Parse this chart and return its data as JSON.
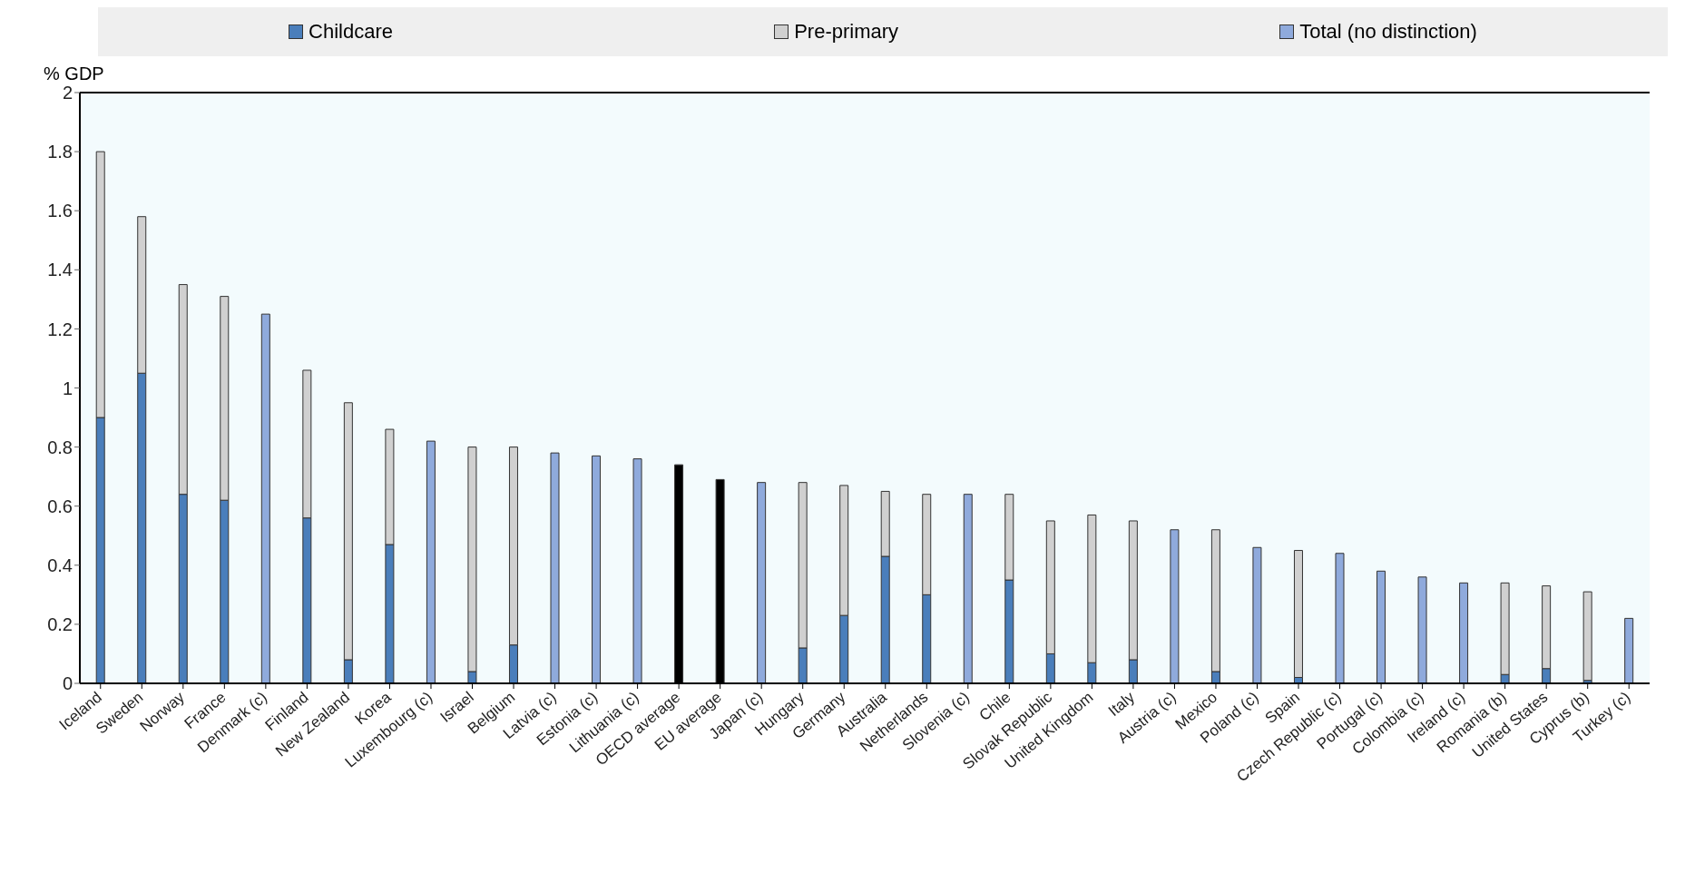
{
  "chart_data": {
    "type": "bar",
    "stacked": true,
    "ylabel": "% GDP",
    "legend": "top",
    "grid": false,
    "categories": [
      "Iceland",
      "Sweden",
      "Norway",
      "France",
      "Denmark (c)",
      "Finland",
      "New Zealand",
      "Korea",
      "Luxembourg (c)",
      "Israel",
      "Belgium",
      "Latvia (c)",
      "Estonia (c)",
      "Lithuania (c)",
      "OECD average",
      "EU average",
      "Japan (c)",
      "Hungary",
      "Germany",
      "Australia",
      "Netherlands",
      "Slovenia (c)",
      "Chile",
      "Slovak Republic",
      "United Kingdom",
      "Italy",
      "Austria (c)",
      "Mexico",
      "Poland (c)",
      "Spain",
      "Czech Republic (c)",
      "Portugal (c)",
      "Colombia (c)",
      "Ireland (c)",
      "Romania (b)",
      "United States",
      "Cyprus (b)",
      "Turkey (c)"
    ],
    "series": [
      {
        "name": "Childcare",
        "color": "#4a7ebb",
        "values": [
          0.9,
          1.05,
          0.64,
          0.62,
          null,
          0.56,
          0.08,
          0.47,
          null,
          0.04,
          0.13,
          null,
          null,
          null,
          null,
          null,
          null,
          0.12,
          0.23,
          0.43,
          0.3,
          null,
          0.35,
          0.1,
          0.07,
          0.08,
          null,
          0.04,
          null,
          0.02,
          null,
          null,
          null,
          null,
          0.03,
          0.05,
          0.01,
          null
        ]
      },
      {
        "name": "Pre-primary",
        "color": "#d0d0d0",
        "values": [
          0.9,
          0.53,
          0.71,
          0.69,
          null,
          0.5,
          0.87,
          0.39,
          null,
          0.76,
          0.67,
          null,
          null,
          null,
          null,
          null,
          null,
          0.56,
          0.44,
          0.22,
          0.34,
          null,
          0.29,
          0.45,
          0.5,
          0.47,
          null,
          0.48,
          null,
          0.43,
          null,
          null,
          null,
          null,
          0.31,
          0.28,
          0.3,
          null
        ]
      },
      {
        "name": "Total (no distinction)",
        "color": "#8faadc",
        "values": [
          null,
          null,
          null,
          null,
          1.25,
          null,
          null,
          null,
          0.82,
          null,
          null,
          0.78,
          0.77,
          0.76,
          null,
          null,
          0.68,
          null,
          null,
          null,
          null,
          0.64,
          null,
          null,
          null,
          null,
          0.52,
          null,
          0.46,
          null,
          0.44,
          0.38,
          0.36,
          0.34,
          null,
          null,
          null,
          0.22
        ]
      },
      {
        "color": "#000000",
        "values": [
          null,
          null,
          null,
          null,
          null,
          null,
          null,
          null,
          null,
          null,
          null,
          null,
          null,
          null,
          0.74,
          0.69,
          null,
          null,
          null,
          null,
          null,
          null,
          null,
          null,
          null,
          null,
          null,
          null,
          null,
          null,
          null,
          null,
          null,
          null,
          null,
          null,
          null,
          null
        ]
      }
    ],
    "ylim": [
      0,
      2
    ],
    "yticks": [
      0,
      0.2,
      0.4,
      0.6,
      0.8,
      1,
      1.2,
      1.4,
      1.6,
      1.8,
      2
    ]
  }
}
